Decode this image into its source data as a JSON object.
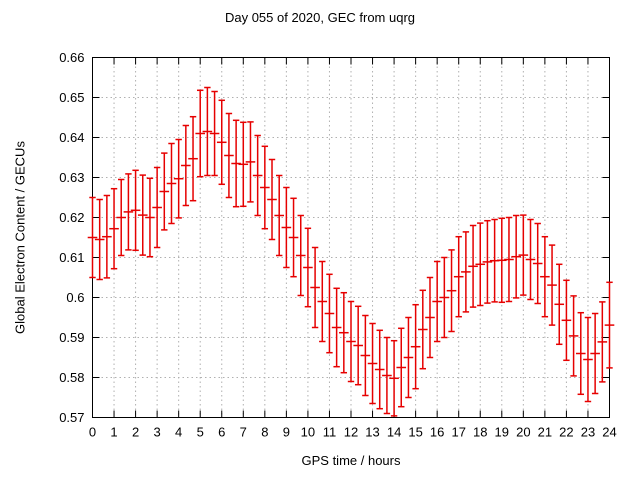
{
  "window": {
    "background": "#ffffff"
  },
  "chart_data": {
    "type": "scatter",
    "subtype": "yerrorbars",
    "title": "Day 055 of 2020, GEC from uqrg",
    "xlabel": "GPS time / hours",
    "ylabel": "Global Electron Content / GECUs",
    "xlim": [
      0,
      24
    ],
    "ylim": [
      0.57,
      0.66
    ],
    "grid": true,
    "legend": "none",
    "xtick_labels": [
      "0",
      "1",
      "2",
      "3",
      "4",
      "5",
      "6",
      "7",
      "8",
      "9",
      "10",
      "11",
      "12",
      "13",
      "14",
      "15",
      "16",
      "17",
      "18",
      "19",
      "20",
      "21",
      "22",
      "23",
      "24"
    ],
    "xtick_values": [
      0,
      1,
      2,
      3,
      4,
      5,
      6,
      7,
      8,
      9,
      10,
      11,
      12,
      13,
      14,
      15,
      16,
      17,
      18,
      19,
      20,
      21,
      22,
      23,
      24
    ],
    "ytick_labels": [
      "0.57",
      "0.58",
      "0.59",
      "0.6",
      "0.61",
      "0.62",
      "0.63",
      "0.64",
      "0.65",
      "0.66"
    ],
    "ytick_values": [
      0.57,
      0.58,
      0.59,
      0.6,
      0.61,
      0.62,
      0.63,
      0.64,
      0.65,
      0.66
    ],
    "colors": {
      "series": "#e60000",
      "grid": "#b0b0b0",
      "axis": "#000000",
      "text": "#000000"
    },
    "series": [
      {
        "name": "GEC",
        "color": "#e60000",
        "marker": "errorbar",
        "x": [
          0,
          0.333,
          0.667,
          1,
          1.333,
          1.667,
          2,
          2.333,
          2.667,
          3,
          3.333,
          3.667,
          4,
          4.333,
          4.667,
          5,
          5.333,
          5.667,
          6,
          6.333,
          6.667,
          7,
          7.333,
          7.667,
          8,
          8.333,
          8.667,
          9,
          9.333,
          9.667,
          10,
          10.333,
          10.667,
          11,
          11.333,
          11.667,
          12,
          12.333,
          12.667,
          13,
          13.333,
          13.667,
          14,
          14.333,
          14.667,
          15,
          15.333,
          15.667,
          16,
          16.333,
          16.667,
          17,
          17.333,
          17.667,
          18,
          18.333,
          18.667,
          19,
          19.333,
          19.667,
          20,
          20.333,
          20.667,
          21,
          21.333,
          21.667,
          22,
          22.333,
          22.667,
          23,
          23.333,
          23.667,
          24
        ],
        "y": [
          0.615,
          0.6145,
          0.6152,
          0.6172,
          0.62,
          0.6214,
          0.6218,
          0.6206,
          0.62,
          0.6225,
          0.6265,
          0.6285,
          0.6297,
          0.633,
          0.6347,
          0.641,
          0.6415,
          0.641,
          0.6388,
          0.6355,
          0.6335,
          0.6333,
          0.6339,
          0.6305,
          0.6275,
          0.6245,
          0.6205,
          0.6175,
          0.615,
          0.6105,
          0.6075,
          0.6025,
          0.599,
          0.596,
          0.5925,
          0.5912,
          0.589,
          0.588,
          0.5855,
          0.5835,
          0.582,
          0.5805,
          0.5798,
          0.5825,
          0.585,
          0.5877,
          0.592,
          0.595,
          0.599,
          0.6,
          0.6017,
          0.6052,
          0.6064,
          0.6078,
          0.6083,
          0.6089,
          0.6092,
          0.6093,
          0.6095,
          0.6102,
          0.6106,
          0.6095,
          0.6085,
          0.6052,
          0.6031,
          0.5983,
          0.5943,
          0.5904,
          0.586,
          0.5845,
          0.586,
          0.5889,
          0.5931
        ],
        "yerr": [
          0.01,
          0.01,
          0.0103,
          0.01,
          0.0095,
          0.0095,
          0.01,
          0.01,
          0.0098,
          0.01,
          0.0096,
          0.01,
          0.0098,
          0.01,
          0.0105,
          0.0108,
          0.011,
          0.0105,
          0.0105,
          0.0105,
          0.0108,
          0.0105,
          0.01,
          0.01,
          0.0103,
          0.01,
          0.01,
          0.01,
          0.0098,
          0.01,
          0.0098,
          0.01,
          0.01,
          0.0098,
          0.0098,
          0.01,
          0.01,
          0.0098,
          0.01,
          0.01,
          0.0098,
          0.0095,
          0.0094,
          0.0098,
          0.01,
          0.0105,
          0.0098,
          0.01,
          0.01,
          0.01,
          0.0102,
          0.01,
          0.01,
          0.0102,
          0.0103,
          0.0103,
          0.0103,
          0.0105,
          0.0105,
          0.0103,
          0.01,
          0.01,
          0.01,
          0.01,
          0.01,
          0.01,
          0.01,
          0.01,
          0.0102,
          0.0105,
          0.01,
          0.01,
          0.0107
        ]
      }
    ]
  }
}
